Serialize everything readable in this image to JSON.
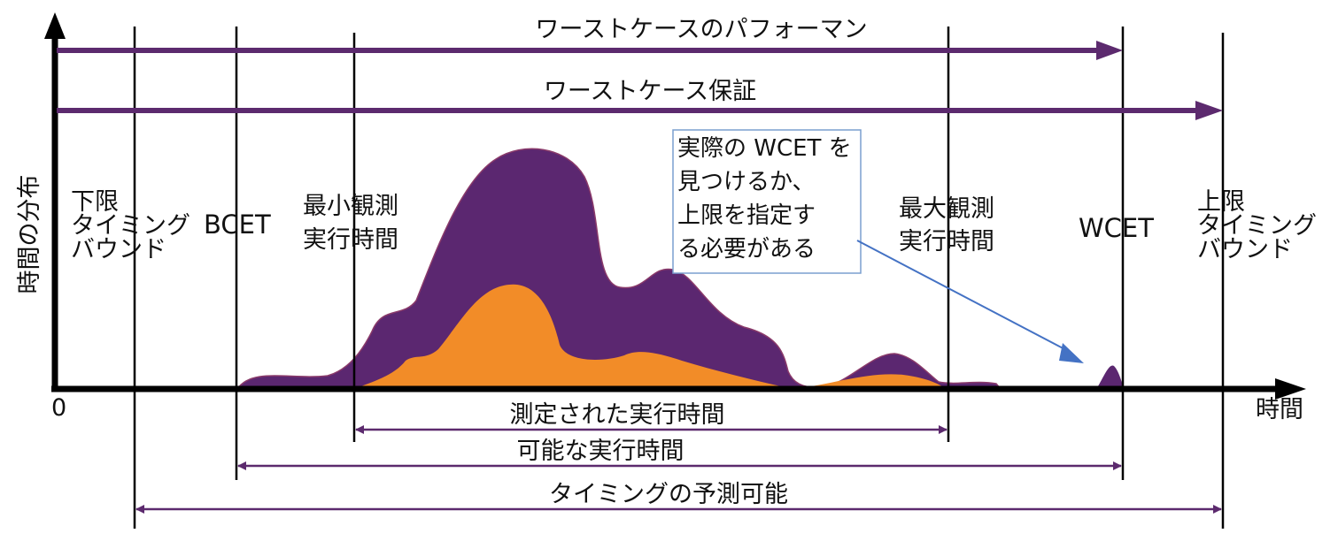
{
  "colors": {
    "axis": "#000000",
    "arrow": "#5c2a6e",
    "dist_all": "#5b2770",
    "dist_measured": "#f28c28",
    "callout_border": "#7a9fcf",
    "pointer": "#4472c4"
  },
  "axes": {
    "y_label": "時間の分布",
    "x_label": "時間",
    "origin": "0"
  },
  "top_arrows": {
    "worst_case_performance": "ワーストケースのパフォーマン",
    "worst_case_guarantee": "ワーストケース保証"
  },
  "markers": {
    "lower_timing_bound": [
      "下限",
      "タイミング",
      "バウンド"
    ],
    "bcet": "BCET",
    "min_observed": [
      "最小観測",
      "実行時間"
    ],
    "max_observed": [
      "最大観測",
      "実行時間"
    ],
    "wcet": "WCET",
    "upper_timing_bound": [
      "上限",
      "タイミング",
      "バウンド"
    ]
  },
  "callout": {
    "lines": [
      "実際の WCET を",
      "見つけるか、",
      "上限を指定す",
      "る必要がある"
    ]
  },
  "bottom_ranges": {
    "measured_execution_times": "測定された実行時間",
    "possible_execution_times": "可能な実行時間",
    "timing_predictability": "タイミングの予測可能"
  }
}
